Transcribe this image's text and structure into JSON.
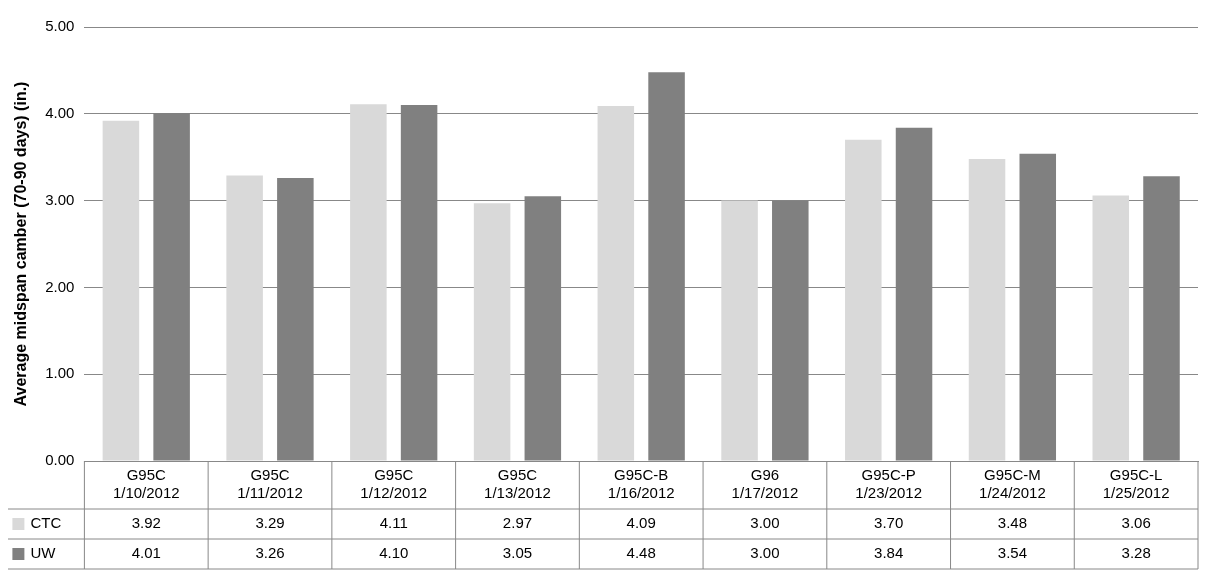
{
  "chart_data": {
    "type": "bar",
    "ylabel": "Average midspan camber (70-90 days) (in.)",
    "categories": [
      "G95C 1/10/2012",
      "G95C 1/11/2012",
      "G95C 1/12/2012",
      "G95C 1/13/2012",
      "G95C-B 1/16/2012",
      "G96 1/17/2012",
      "G95C-P 1/23/2012",
      "G95C-M 1/24/2012",
      "G95C-L 1/25/2012"
    ],
    "series": [
      {
        "name": "CTC",
        "color": "#d9d9d9",
        "values": [
          3.92,
          3.29,
          4.11,
          2.97,
          4.09,
          3.0,
          3.7,
          3.48,
          3.06
        ],
        "value_labels": [
          "3.92",
          "3.29",
          "4.11",
          "2.97",
          "4.09",
          "3.00",
          "3.70",
          "3.48",
          "3.06"
        ]
      },
      {
        "name": "UW",
        "color": "#808080",
        "values": [
          4.01,
          3.26,
          4.1,
          3.05,
          4.48,
          3.0,
          3.84,
          3.54,
          3.28
        ],
        "value_labels": [
          "4.01",
          "3.26",
          "4.10",
          "3.05",
          "4.48",
          "3.00",
          "3.84",
          "3.54",
          "3.28"
        ]
      }
    ],
    "ylim": [
      0,
      5
    ],
    "yticks": [
      {
        "value": 0,
        "label": "0.00"
      },
      {
        "value": 1,
        "label": "1.00"
      },
      {
        "value": 2,
        "label": "2.00"
      },
      {
        "value": 3,
        "label": "3.00"
      },
      {
        "value": 4,
        "label": "4.00"
      },
      {
        "value": 5,
        "label": "5.00"
      }
    ],
    "grid": "y",
    "legend": "bottom"
  }
}
